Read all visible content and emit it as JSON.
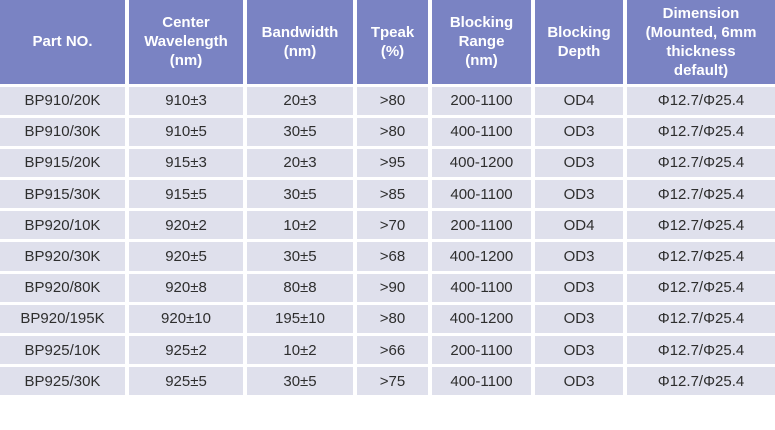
{
  "colors": {
    "header_bg": "#7a83c3",
    "row_bg": "#dfe0ec",
    "header_text": "#ffffff",
    "body_text": "#2e2e2e",
    "grid_gap": "#ffffff"
  },
  "chart_data": {
    "type": "table",
    "columns": [
      "Part NO.",
      "Center Wavelength (nm)",
      "Bandwidth (nm)",
      "Tpeak (%)",
      "Blocking Range (nm)",
      "Blocking Depth",
      "Dimension (Mounted, 6mm thickness default)"
    ],
    "rows": [
      [
        "BP910/20K",
        "910±3",
        "20±3",
        ">80",
        "200-1100",
        "OD4",
        "Φ12.7/Φ25.4"
      ],
      [
        "BP910/30K",
        "910±5",
        "30±5",
        ">80",
        "400-1100",
        "OD3",
        "Φ12.7/Φ25.4"
      ],
      [
        "BP915/20K",
        "915±3",
        "20±3",
        ">95",
        "400-1200",
        "OD3",
        "Φ12.7/Φ25.4"
      ],
      [
        "BP915/30K",
        "915±5",
        "30±5",
        ">85",
        "400-1100",
        "OD3",
        "Φ12.7/Φ25.4"
      ],
      [
        "BP920/10K",
        "920±2",
        "10±2",
        ">70",
        "200-1100",
        "OD4",
        "Φ12.7/Φ25.4"
      ],
      [
        "BP920/30K",
        "920±5",
        "30±5",
        ">68",
        "400-1200",
        "OD3",
        "Φ12.7/Φ25.4"
      ],
      [
        "BP920/80K",
        "920±8",
        "80±8",
        ">90",
        "400-1100",
        "OD3",
        "Φ12.7/Φ25.4"
      ],
      [
        "BP920/195K",
        "920±10",
        "195±10",
        ">80",
        "400-1200",
        "OD3",
        "Φ12.7/Φ25.4"
      ],
      [
        "BP925/10K",
        "925±2",
        "10±2",
        ">66",
        "200-1100",
        "OD3",
        "Φ12.7/Φ25.4"
      ],
      [
        "BP925/30K",
        "925±5",
        "30±5",
        ">75",
        "400-1100",
        "OD3",
        "Φ12.7/Φ25.4"
      ]
    ]
  }
}
